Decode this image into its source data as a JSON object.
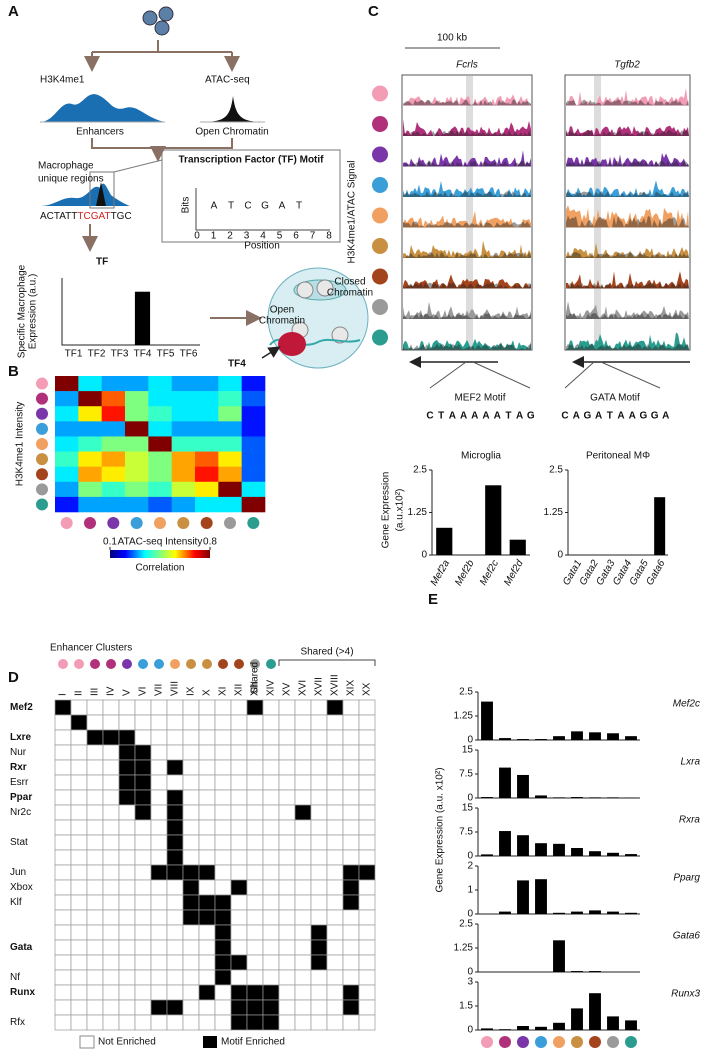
{
  "panel_labels": [
    "A",
    "B",
    "C",
    "D",
    "E"
  ],
  "panel_a": {
    "h3k4me1": "H3K4me1",
    "atac_seq": "ATAC-seq",
    "enhancers": "Enhancers",
    "open_chromatin": "Open Chromatin",
    "unique_regions": [
      "Macrophage",
      "unique regions"
    ],
    "sequence": [
      "ACTATT",
      "TCGAT",
      "TGC"
    ],
    "motif_title": "Transcription Factor (TF) Motif",
    "logo_letters": [
      "A",
      "T",
      "C",
      "G",
      "A",
      "T"
    ],
    "logo_y_label": "Bits",
    "logo_x_label": "Position",
    "logo_positions": [
      0,
      1,
      2,
      3,
      4,
      5,
      6,
      7,
      8
    ],
    "tf": "TF",
    "tf4": "TF4",
    "closed_chromatin": [
      "Closed",
      "Chromatin"
    ],
    "open_chromatin_cell": [
      "Open",
      "Chromatin"
    ]
  },
  "panel_c": {
    "scale": "100 kb",
    "genes": [
      "Fcrls",
      "Tgfb2"
    ],
    "y_label": "H3K4me1/ATAC Signal",
    "motifs": [
      {
        "name": "MEF2 Motif",
        "letters": [
          "C",
          "T",
          "A",
          "A",
          "A",
          "A",
          "A",
          "T",
          "A",
          "G"
        ]
      },
      {
        "name": "GATA Motif",
        "letters": [
          "C",
          "A",
          "G",
          "A",
          "T",
          "A",
          "A",
          "G",
          "G",
          "A"
        ]
      }
    ],
    "expr_label": [
      "Gene Expression",
      "(a.u.x10²)"
    ]
  },
  "panel_e": {
    "y_label": "Gene Expression (a.u. x10²)"
  },
  "chart_data": [
    {
      "type": "bar",
      "y_label": [
        "Specific Macrophage",
        "Expression (a.u.)"
      ],
      "categories": [
        "TF1",
        "TF2",
        "TF3",
        "TF4",
        "TF5",
        "TF6"
      ],
      "values": [
        0,
        0,
        0,
        175,
        0,
        0
      ],
      "ylim": [
        0,
        220
      ],
      "color": "#000000"
    },
    {
      "type": "heatmap",
      "x_label": "ATAC-seq Intensity",
      "y_label": "H3K4me1 Intensity",
      "colorbar_label": "Correlation",
      "values": [
        [
          0.8,
          0.35,
          0.3,
          0.3,
          0.35,
          0.3,
          0.3,
          0.35,
          0.2
        ],
        [
          0.3,
          0.8,
          0.65,
          0.45,
          0.35,
          0.35,
          0.35,
          0.4,
          0.25
        ],
        [
          0.35,
          0.55,
          0.7,
          0.45,
          0.4,
          0.35,
          0.35,
          0.45,
          0.2
        ],
        [
          0.3,
          0.3,
          0.3,
          0.8,
          0.35,
          0.3,
          0.3,
          0.3,
          0.2
        ],
        [
          0.35,
          0.4,
          0.45,
          0.45,
          0.8,
          0.4,
          0.4,
          0.4,
          0.25
        ],
        [
          0.4,
          0.55,
          0.6,
          0.5,
          0.45,
          0.6,
          0.65,
          0.55,
          0.25
        ],
        [
          0.35,
          0.6,
          0.55,
          0.5,
          0.45,
          0.6,
          0.7,
          0.6,
          0.25
        ],
        [
          0.3,
          0.45,
          0.4,
          0.45,
          0.4,
          0.5,
          0.55,
          0.8,
          0.35
        ],
        [
          0.2,
          0.3,
          0.3,
          0.3,
          0.25,
          0.3,
          0.35,
          0.35,
          0.8
        ]
      ],
      "zlim": [
        0.1,
        0.8
      ],
      "zticks": [
        0.1,
        0.8
      ]
    },
    {
      "type": "bar",
      "title": "Microglia",
      "categories": [
        "Mef2a",
        "Mef2b",
        "Mef2c",
        "Mef2d"
      ],
      "values": [
        0.8,
        0,
        2.05,
        0.45
      ],
      "ylim": [
        0,
        2.5
      ],
      "yticks": [
        0,
        1.25,
        2.5
      ],
      "color": "#000000"
    },
    {
      "type": "bar",
      "title": "Peritoneal MΦ",
      "categories": [
        "Gata1",
        "Gata2",
        "Gata3",
        "Gata4",
        "Gata5",
        "Gata6"
      ],
      "values": [
        0,
        0,
        0,
        0,
        0,
        1.7
      ],
      "ylim": [
        0,
        2.5
      ],
      "yticks": [
        0,
        1.25,
        2.5
      ],
      "color": "#000000"
    },
    {
      "type": "matrix",
      "title": "Enhancer Clusters",
      "column_note": "Shared",
      "group_label": "Shared (>4)",
      "columns": [
        "I",
        "II",
        "III",
        "IV",
        "V",
        "VI",
        "VII",
        "VIII",
        "IX",
        "X",
        "XI",
        "XII",
        "XIII",
        "XIV",
        "XV",
        "XVI",
        "XVII",
        "XVIII",
        "XIX",
        "XX"
      ],
      "rows": [
        "Mef2",
        null,
        "Lxre",
        "Nur",
        "Rxr",
        "Esrr",
        "Ppar",
        "Nr2c",
        null,
        "Stat",
        null,
        "Jun",
        "Xbox",
        "Klf",
        null,
        null,
        "Gata",
        null,
        "Nf",
        "Runx",
        null,
        "Rfx"
      ],
      "row_bold": [
        true,
        false,
        true,
        false,
        true,
        false,
        true,
        false,
        false,
        false,
        false,
        false,
        false,
        false,
        false,
        false,
        true,
        false,
        false,
        true,
        false,
        false
      ],
      "values": [
        [
          1,
          0,
          0,
          0,
          0,
          0,
          0,
          0,
          0,
          0,
          0,
          0,
          1,
          0,
          0,
          0,
          0,
          1,
          0,
          0
        ],
        [
          0,
          1,
          0,
          0,
          0,
          0,
          0,
          0,
          0,
          0,
          0,
          0,
          0,
          0,
          0,
          0,
          0,
          0,
          0,
          0
        ],
        [
          0,
          0,
          1,
          1,
          1,
          0,
          0,
          0,
          0,
          0,
          0,
          0,
          0,
          0,
          0,
          0,
          0,
          0,
          0,
          0
        ],
        [
          0,
          0,
          0,
          0,
          1,
          1,
          0,
          0,
          0,
          0,
          0,
          0,
          0,
          0,
          0,
          0,
          0,
          0,
          0,
          0
        ],
        [
          0,
          0,
          0,
          0,
          1,
          1,
          0,
          1,
          0,
          0,
          0,
          0,
          0,
          0,
          0,
          0,
          0,
          0,
          0,
          0
        ],
        [
          0,
          0,
          0,
          0,
          1,
          1,
          0,
          0,
          0,
          0,
          0,
          0,
          0,
          0,
          0,
          0,
          0,
          0,
          0,
          0
        ],
        [
          0,
          0,
          0,
          0,
          1,
          1,
          0,
          1,
          0,
          0,
          0,
          0,
          0,
          0,
          0,
          0,
          0,
          0,
          0,
          0
        ],
        [
          0,
          0,
          0,
          0,
          0,
          1,
          0,
          1,
          0,
          0,
          0,
          0,
          0,
          0,
          0,
          1,
          0,
          0,
          0,
          0
        ],
        [
          0,
          0,
          0,
          0,
          0,
          0,
          0,
          1,
          0,
          0,
          0,
          0,
          0,
          0,
          0,
          0,
          0,
          0,
          0,
          0
        ],
        [
          0,
          0,
          0,
          0,
          0,
          0,
          0,
          1,
          0,
          0,
          0,
          0,
          0,
          0,
          0,
          0,
          0,
          0,
          0,
          0
        ],
        [
          0,
          0,
          0,
          0,
          0,
          0,
          0,
          1,
          0,
          0,
          0,
          0,
          0,
          0,
          0,
          0,
          0,
          0,
          0,
          0
        ],
        [
          0,
          0,
          0,
          0,
          0,
          0,
          1,
          1,
          1,
          1,
          0,
          0,
          0,
          0,
          0,
          0,
          0,
          0,
          1,
          1
        ],
        [
          0,
          0,
          0,
          0,
          0,
          0,
          0,
          0,
          1,
          0,
          0,
          1,
          0,
          0,
          0,
          0,
          0,
          0,
          1,
          0
        ],
        [
          0,
          0,
          0,
          0,
          0,
          0,
          0,
          0,
          1,
          1,
          1,
          0,
          0,
          0,
          0,
          0,
          0,
          0,
          1,
          0
        ],
        [
          0,
          0,
          0,
          0,
          0,
          0,
          0,
          0,
          1,
          1,
          1,
          0,
          0,
          0,
          0,
          0,
          0,
          0,
          0,
          0
        ],
        [
          0,
          0,
          0,
          0,
          0,
          0,
          0,
          0,
          0,
          0,
          1,
          0,
          0,
          0,
          0,
          0,
          1,
          0,
          0,
          0
        ],
        [
          0,
          0,
          0,
          0,
          0,
          0,
          0,
          0,
          0,
          0,
          1,
          0,
          0,
          0,
          0,
          0,
          1,
          0,
          0,
          0
        ],
        [
          0,
          0,
          0,
          0,
          0,
          0,
          0,
          0,
          0,
          0,
          1,
          1,
          0,
          0,
          0,
          0,
          1,
          0,
          0,
          0
        ],
        [
          0,
          0,
          0,
          0,
          0,
          0,
          0,
          0,
          0,
          0,
          1,
          0,
          0,
          0,
          0,
          0,
          0,
          0,
          0,
          0
        ],
        [
          0,
          0,
          0,
          0,
          0,
          0,
          0,
          0,
          0,
          1,
          0,
          1,
          1,
          1,
          0,
          0,
          0,
          0,
          1,
          0
        ],
        [
          0,
          0,
          0,
          0,
          0,
          0,
          1,
          1,
          0,
          0,
          0,
          1,
          1,
          1,
          0,
          0,
          0,
          0,
          1,
          0
        ],
        [
          0,
          0,
          0,
          0,
          0,
          0,
          0,
          0,
          0,
          0,
          0,
          1,
          1,
          1,
          0,
          0,
          0,
          0,
          0,
          0
        ]
      ],
      "legend": [
        "Not Enriched",
        "Motif Enriched"
      ]
    },
    {
      "type": "bar",
      "title": "Mef2c",
      "values": [
        2.0,
        0.1,
        0.05,
        0.05,
        0.2,
        0.45,
        0.4,
        0.35,
        0.2
      ],
      "ylim": [
        0,
        2.5
      ],
      "yticks": [
        0,
        1.25,
        2.5
      ],
      "color": "#000000"
    },
    {
      "type": "bar",
      "title": "Lxra",
      "values": [
        0.3,
        9.5,
        7.2,
        0.8,
        0.2,
        0.3,
        0.2,
        0.2,
        0.1
      ],
      "ylim": [
        0,
        15
      ],
      "yticks": [
        0,
        7.5,
        15
      ],
      "color": "#000000"
    },
    {
      "type": "bar",
      "title": "Rxra",
      "values": [
        0.5,
        7.8,
        6.5,
        4.0,
        3.8,
        2.5,
        1.5,
        1.0,
        0.6
      ],
      "ylim": [
        0,
        15
      ],
      "yticks": [
        0,
        7.5,
        15
      ],
      "color": "#000000"
    },
    {
      "type": "bar",
      "title": "Pparg",
      "values": [
        0,
        0.1,
        1.4,
        1.45,
        0.05,
        0.1,
        0.15,
        0.1,
        0.05
      ],
      "ylim": [
        0,
        2
      ],
      "yticks": [
        0,
        1,
        2
      ],
      "color": "#000000"
    },
    {
      "type": "bar",
      "title": "Gata6",
      "values": [
        0,
        0,
        0,
        0,
        1.65,
        0.05,
        0.05,
        0,
        0
      ],
      "ylim": [
        0,
        2.5
      ],
      "yticks": [
        0,
        1.25,
        2.5
      ],
      "color": "#000000"
    },
    {
      "type": "bar",
      "title": "Runx3",
      "values": [
        0.1,
        0.05,
        0.25,
        0.2,
        0.45,
        1.35,
        2.3,
        0.85,
        0.6
      ],
      "ylim": [
        0,
        3
      ],
      "yticks": [
        0,
        1.5,
        3
      ],
      "color": "#000000"
    }
  ]
}
